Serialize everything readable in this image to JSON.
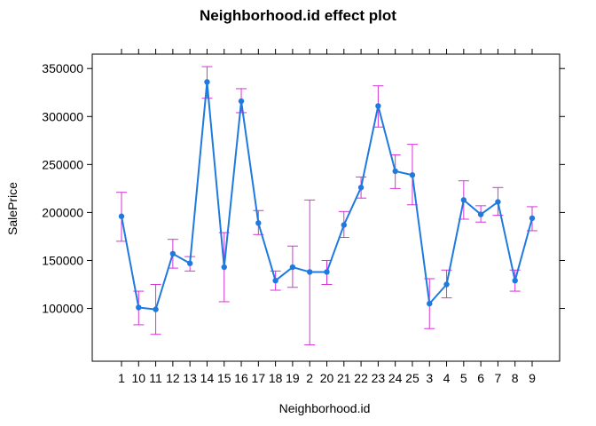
{
  "chart_data": {
    "type": "line",
    "title": "Neighborhood.id effect plot",
    "xlabel": "Neighborhood.id",
    "ylabel": "SalePrice",
    "ylim": [
      45000,
      365000
    ],
    "y_ticks": [
      100000,
      150000,
      200000,
      250000,
      300000,
      350000
    ],
    "y_tick_labels": [
      "100000",
      "150000",
      "200000",
      "250000",
      "300000",
      "350000"
    ],
    "grid": false,
    "line_color": "#1f7ae0",
    "errorbar_color": "#d633d6",
    "categories": [
      "1",
      "10",
      "11",
      "12",
      "13",
      "14",
      "15",
      "16",
      "17",
      "18",
      "19",
      "2",
      "20",
      "21",
      "22",
      "23",
      "24",
      "25",
      "3",
      "4",
      "5",
      "6",
      "7",
      "8",
      "9"
    ],
    "series": [
      {
        "values": [
          196000,
          101000,
          99000,
          157000,
          147000,
          336000,
          143000,
          316000,
          189000,
          129000,
          143000,
          138000,
          138000,
          187000,
          226000,
          311000,
          243000,
          239000,
          105000,
          125000,
          213000,
          198000,
          211000,
          129000,
          194000
        ],
        "lower": [
          170000,
          83000,
          73000,
          142000,
          139000,
          319000,
          107000,
          304000,
          177000,
          119000,
          122000,
          62000,
          125000,
          174000,
          215000,
          289000,
          225000,
          208000,
          79000,
          111000,
          193000,
          190000,
          197000,
          118000,
          181000
        ],
        "upper": [
          221000,
          118000,
          125000,
          172000,
          154000,
          352000,
          179000,
          329000,
          202000,
          139000,
          165000,
          213000,
          150000,
          201000,
          237000,
          332000,
          260000,
          271000,
          131000,
          140000,
          233000,
          207000,
          226000,
          140000,
          206000
        ]
      }
    ]
  }
}
